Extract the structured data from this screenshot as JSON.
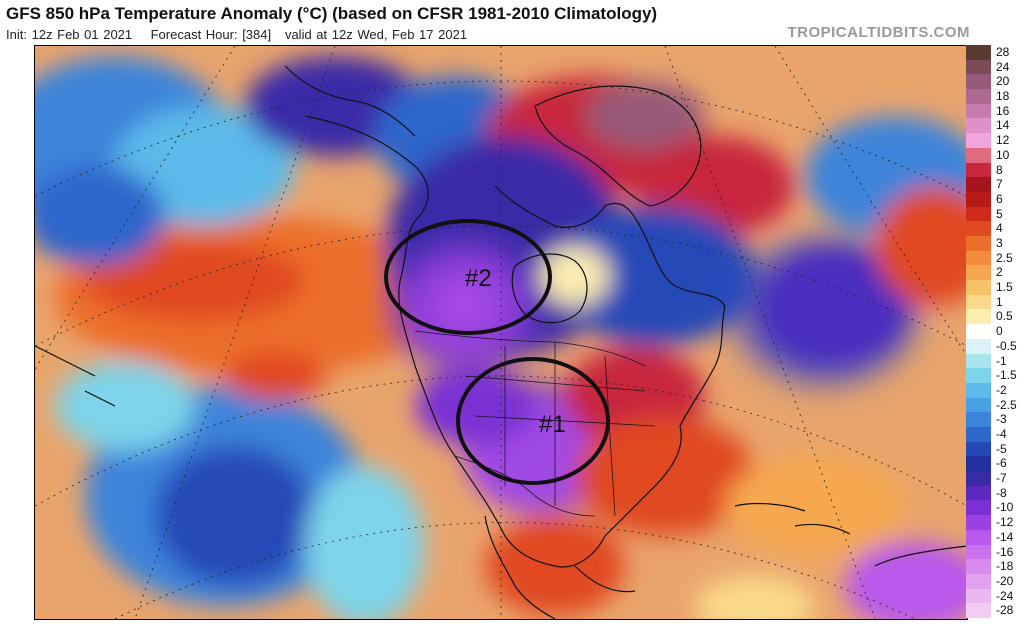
{
  "header": {
    "title": "GFS 850 hPa Temperature Anomaly (°C) (based on CFSR 1981-2010 Climatology)",
    "init": "Init: 12z Feb 01 2021",
    "forecast_hour": "Forecast Hour: [384]",
    "valid": "valid at 12z Wed, Feb 17 2021",
    "brand": "TROPICALTIDBITS.COM"
  },
  "map": {
    "annotations": [
      {
        "label": "#1"
      },
      {
        "label": "#2"
      }
    ]
  },
  "colorbar": {
    "labels": [
      "28",
      "24",
      "20",
      "18",
      "16",
      "14",
      "12",
      "10",
      "8",
      "7",
      "6",
      "5",
      "4",
      "3",
      "2.5",
      "2",
      "1.5",
      "1",
      "0.5",
      "0",
      "-0.5",
      "-1",
      "-1.5",
      "-2",
      "-2.5",
      "-3",
      "-4",
      "-5",
      "-6",
      "-7",
      "-8",
      "-10",
      "-12",
      "-14",
      "-16",
      "-18",
      "-20",
      "-24",
      "-28"
    ],
    "colors": [
      "#5a3a2e",
      "#7a4a56",
      "#965a78",
      "#b06a92",
      "#c87aae",
      "#e090c8",
      "#f0a6dc",
      "#e06a80",
      "#c8283c",
      "#a8141c",
      "#b81a18",
      "#d02a1a",
      "#e04a20",
      "#ec6e2a",
      "#f28c3c",
      "#f6a850",
      "#f8c268",
      "#fada8a",
      "#fcecb0",
      "#ffffff",
      "#dcf2f6",
      "#a8e4ee",
      "#7ed4ea",
      "#5cbaea",
      "#4aa0e4",
      "#3c84da",
      "#2e66cc",
      "#2548b8",
      "#2430a0",
      "#3a2aa8",
      "#5a2ac0",
      "#7a30d4",
      "#9a40e4",
      "#b858ec",
      "#cc72ee",
      "#d98aee",
      "#e2a0ee",
      "#eab8f0",
      "#f2ccf2"
    ]
  }
}
